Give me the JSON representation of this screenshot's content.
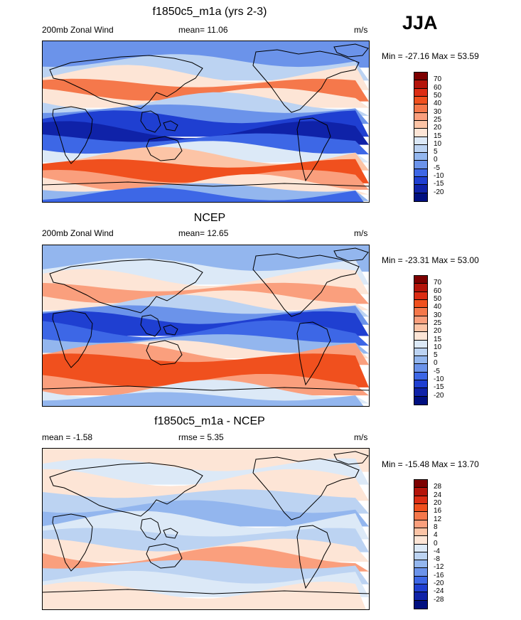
{
  "season": "JJA",
  "panels": [
    {
      "id": "model",
      "title": "f1850c5_m1a (yrs 2-3)",
      "left_label": "200mb Zonal Wind",
      "stat_label": "mean=  11.06",
      "units": "m/s",
      "minmax": "Min = -27.16 Max =  53.59",
      "colorbar": {
        "levels": [
          "70",
          "60",
          "50",
          "40",
          "30",
          "25",
          "20",
          "15",
          "10",
          "5",
          "0",
          "-5",
          "-10",
          "-15",
          "-20"
        ],
        "colors": [
          "#7d0000",
          "#b4140a",
          "#dc2d14",
          "#f0501e",
          "#f5784b",
          "#fa9f7d",
          "#fcc4a6",
          "#fde5d6",
          "#dce9f7",
          "#bcd3f2",
          "#93b6ee",
          "#6b93ea",
          "#3d67e6",
          "#1f3fd1",
          "#0f22a8",
          "#000f80"
        ]
      },
      "map_bands": [
        {
          "y": 0,
          "color": "#6b93ea"
        },
        {
          "y": 0.12,
          "color": "#bcd3f2"
        },
        {
          "y": 0.2,
          "color": "#fde5d6"
        },
        {
          "y": 0.26,
          "color": "#f5784b"
        },
        {
          "y": 0.33,
          "color": "#fde5d6"
        },
        {
          "y": 0.37,
          "color": "#bcd3f2"
        },
        {
          "y": 0.42,
          "color": "#6b93ea"
        },
        {
          "y": 0.47,
          "color": "#1f3fd1"
        },
        {
          "y": 0.55,
          "color": "#0f22a8"
        },
        {
          "y": 0.6,
          "color": "#3d67e6"
        },
        {
          "y": 0.66,
          "color": "#dce9f7"
        },
        {
          "y": 0.71,
          "color": "#fcc4a6"
        },
        {
          "y": 0.76,
          "color": "#f0501e"
        },
        {
          "y": 0.84,
          "color": "#fa9f7d"
        },
        {
          "y": 0.88,
          "color": "#fde5d6"
        },
        {
          "y": 0.91,
          "color": "#93b6ee"
        },
        {
          "y": 0.95,
          "color": "#3d67e6"
        }
      ]
    },
    {
      "id": "obs",
      "title": "NCEP",
      "left_label": "200mb Zonal Wind",
      "stat_label": "mean=  12.65",
      "units": "m/s",
      "minmax": "Min = -23.31 Max =  53.00",
      "colorbar": {
        "levels": [
          "70",
          "60",
          "50",
          "40",
          "30",
          "25",
          "20",
          "15",
          "10",
          "5",
          "0",
          "-5",
          "-10",
          "-15",
          "-20"
        ],
        "colors": [
          "#7d0000",
          "#b4140a",
          "#dc2d14",
          "#f0501e",
          "#f5784b",
          "#fa9f7d",
          "#fcc4a6",
          "#fde5d6",
          "#dce9f7",
          "#bcd3f2",
          "#93b6ee",
          "#6b93ea",
          "#3d67e6",
          "#1f3fd1",
          "#0f22a8",
          "#000f80"
        ]
      },
      "map_bands": [
        {
          "y": 0,
          "color": "#93b6ee"
        },
        {
          "y": 0.12,
          "color": "#dce9f7"
        },
        {
          "y": 0.2,
          "color": "#fde5d6"
        },
        {
          "y": 0.26,
          "color": "#fa9f7d"
        },
        {
          "y": 0.32,
          "color": "#fde5d6"
        },
        {
          "y": 0.36,
          "color": "#bcd3f2"
        },
        {
          "y": 0.4,
          "color": "#6b93ea"
        },
        {
          "y": 0.45,
          "color": "#1f3fd1"
        },
        {
          "y": 0.52,
          "color": "#3d67e6"
        },
        {
          "y": 0.58,
          "color": "#93b6ee"
        },
        {
          "y": 0.63,
          "color": "#fde5d6"
        },
        {
          "y": 0.66,
          "color": "#fa9f7d"
        },
        {
          "y": 0.7,
          "color": "#f0501e"
        },
        {
          "y": 0.84,
          "color": "#fa9f7d"
        },
        {
          "y": 0.89,
          "color": "#dce9f7"
        },
        {
          "y": 0.94,
          "color": "#93b6ee"
        }
      ]
    },
    {
      "id": "diff",
      "title": "f1850c5_m1a - NCEP",
      "left_label": "mean =  -1.58",
      "stat_label": "rmse =   5.35",
      "units": "m/s",
      "minmax": "Min = -15.48 Max =  13.70",
      "colorbar": {
        "levels": [
          "28",
          "24",
          "20",
          "16",
          "12",
          "8",
          "4",
          "0",
          "-4",
          "-8",
          "-12",
          "-16",
          "-20",
          "-24",
          "-28"
        ],
        "colors": [
          "#7d0000",
          "#b4140a",
          "#dc2d14",
          "#f0501e",
          "#f5784b",
          "#fa9f7d",
          "#fcc4a6",
          "#fde5d6",
          "#dce9f7",
          "#bcd3f2",
          "#93b6ee",
          "#6b93ea",
          "#3d67e6",
          "#1f3fd1",
          "#0f22a8",
          "#000f80"
        ]
      },
      "map_bands": [
        {
          "y": 0,
          "color": "#fde5d6"
        },
        {
          "y": 0.1,
          "color": "#dce9f7"
        },
        {
          "y": 0.18,
          "color": "#fde5d6"
        },
        {
          "y": 0.28,
          "color": "#bcd3f2"
        },
        {
          "y": 0.36,
          "color": "#93b6ee"
        },
        {
          "y": 0.44,
          "color": "#dce9f7"
        },
        {
          "y": 0.52,
          "color": "#bcd3f2"
        },
        {
          "y": 0.6,
          "color": "#fde5d6"
        },
        {
          "y": 0.66,
          "color": "#fa9f7d"
        },
        {
          "y": 0.72,
          "color": "#bcd3f2"
        },
        {
          "y": 0.8,
          "color": "#dce9f7"
        },
        {
          "y": 0.88,
          "color": "#fde5d6"
        }
      ]
    }
  ]
}
